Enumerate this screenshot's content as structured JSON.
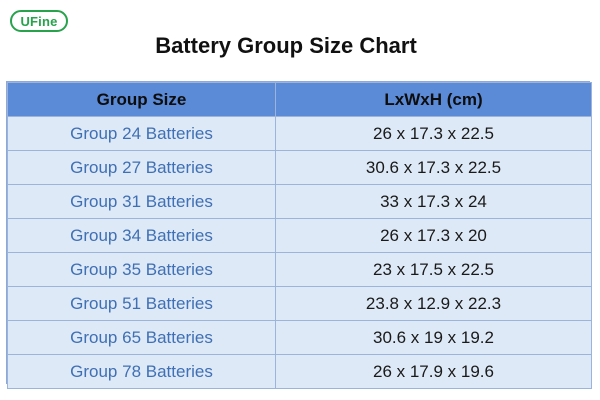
{
  "logo": {
    "text": "UFine",
    "color": "#27a34b"
  },
  "title": "Battery Group Size Chart",
  "table": {
    "headers": [
      "Group Size",
      "LxWxH (cm)"
    ],
    "rows": [
      {
        "group": "Group 24 Batteries",
        "dims": "26 x 17.3 x 22.5"
      },
      {
        "group": "Group 27 Batteries",
        "dims": "30.6 x 17.3 x 22.5"
      },
      {
        "group": "Group 31 Batteries",
        "dims": "33 x 17.3 x 24"
      },
      {
        "group": "Group 34 Batteries",
        "dims": "26 x 17.3 x 20"
      },
      {
        "group": "Group 35 Batteries",
        "dims": "23 x 17.5 x 22.5"
      },
      {
        "group": "Group 51 Batteries",
        "dims": "23.8 x 12.9 x 22.3"
      },
      {
        "group": "Group 65 Batteries",
        "dims": "30.6 x 19 x 19.2"
      },
      {
        "group": "Group 78 Batteries",
        "dims": "26 x 17.9 x 19.6"
      }
    ],
    "colors": {
      "header_bg": "#5b8ad6",
      "row_bg": "#dde9f6",
      "group_text": "#3f6fb4"
    }
  }
}
